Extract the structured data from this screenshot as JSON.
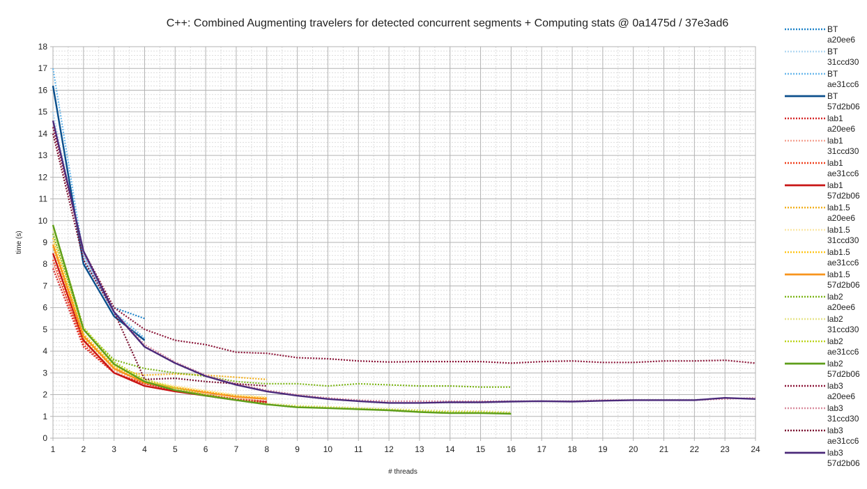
{
  "chart_data": {
    "type": "line",
    "title": "C++: Combined Augmenting travelers for detected concurrent segments + Computing stats @ 0a1475d / 37e3ad6",
    "xlabel": "# threads",
    "ylabel": "time (s)",
    "xlim": [
      1,
      24
    ],
    "ylim": [
      0,
      18
    ],
    "xticks": [
      "1",
      "2",
      "3",
      "4",
      "5",
      "6",
      "7",
      "8",
      "9",
      "10",
      "11",
      "12",
      "13",
      "14",
      "15",
      "16",
      "17",
      "18",
      "19",
      "20",
      "21",
      "22",
      "23",
      "24"
    ],
    "yticks": [
      "0",
      "1",
      "2",
      "3",
      "4",
      "5",
      "6",
      "7",
      "8",
      "9",
      "10",
      "11",
      "12",
      "13",
      "14",
      "15",
      "16",
      "17",
      "18"
    ],
    "grid": true,
    "legend_position": "right",
    "series": [
      {
        "name": "BT",
        "commit": "a20ee6",
        "color": "#1f83c9",
        "dash": "dotted",
        "x": [
          1,
          2,
          3,
          4
        ],
        "y": [
          16.2,
          8.1,
          6.0,
          5.5
        ]
      },
      {
        "name": "BT",
        "commit": "31ccd30",
        "color": "#b4d9f3",
        "dash": "dotted",
        "x": [
          1,
          2,
          3,
          4
        ],
        "y": [
          15.0,
          8.3,
          5.7,
          4.6
        ]
      },
      {
        "name": "BT",
        "commit": "ae31cc6",
        "color": "#6ab8ec",
        "dash": "dotted",
        "x": [
          1,
          2,
          3,
          4
        ],
        "y": [
          17.0,
          8.4,
          5.8,
          4.6
        ]
      },
      {
        "name": "BT",
        "commit": "57d2b06",
        "color": "#0b4f8c",
        "dash": "solid",
        "x": [
          1,
          2,
          3,
          4
        ],
        "y": [
          16.2,
          8.0,
          5.6,
          4.5
        ]
      },
      {
        "name": "lab1",
        "commit": "a20ee6",
        "color": "#d62728",
        "dash": "dotted",
        "x": [
          1,
          2,
          3,
          4,
          5,
          6,
          7,
          8
        ],
        "y": [
          7.8,
          4.2,
          3.0,
          2.5,
          2.2,
          2.0,
          1.8,
          1.7
        ]
      },
      {
        "name": "lab1",
        "commit": "31ccd30",
        "color": "#f4a292",
        "dash": "dotted",
        "x": [
          1,
          2,
          3,
          4,
          5,
          6,
          7,
          8
        ],
        "y": [
          8.0,
          4.4,
          3.1,
          2.6,
          2.3,
          2.0,
          1.8,
          1.7
        ]
      },
      {
        "name": "lab1",
        "commit": "ae31cc6",
        "color": "#ef3e1a",
        "dash": "dotted",
        "x": [
          1,
          2,
          3,
          4,
          5,
          6,
          7,
          8
        ],
        "y": [
          8.2,
          4.3,
          3.0,
          2.5,
          2.2,
          2.0,
          1.8,
          1.6
        ]
      },
      {
        "name": "lab1",
        "commit": "57d2b06",
        "color": "#c81414",
        "dash": "solid",
        "x": [
          1,
          2,
          3,
          4,
          5,
          6,
          7,
          8
        ],
        "y": [
          8.5,
          4.5,
          3.0,
          2.4,
          2.15,
          1.95,
          1.75,
          1.65
        ]
      },
      {
        "name": "lab1.5",
        "commit": "a20ee6",
        "color": "#f2b01e",
        "dash": "dotted",
        "x": [
          1,
          2,
          3,
          4,
          5,
          6,
          7,
          8
        ],
        "y": [
          8.8,
          4.6,
          3.2,
          2.9,
          2.95,
          2.9,
          2.8,
          2.7
        ]
      },
      {
        "name": "lab1.5",
        "commit": "31ccd30",
        "color": "#fbe7a6",
        "dash": "dotted",
        "x": [
          1,
          2,
          3,
          4,
          5,
          6,
          7,
          8
        ],
        "y": [
          9.0,
          4.7,
          3.3,
          2.7,
          2.4,
          2.2,
          2.0,
          1.9
        ]
      },
      {
        "name": "lab1.5",
        "commit": "ae31cc6",
        "color": "#ffc61a",
        "dash": "dotted",
        "x": [
          1,
          2,
          3,
          4,
          5,
          6,
          7,
          8
        ],
        "y": [
          9.2,
          4.8,
          3.3,
          2.6,
          2.35,
          2.15,
          1.95,
          1.85
        ]
      },
      {
        "name": "lab1.5",
        "commit": "57d2b06",
        "color": "#f7941d",
        "dash": "solid",
        "x": [
          1,
          2,
          3,
          4,
          5,
          6,
          7,
          8
        ],
        "y": [
          8.9,
          4.7,
          3.2,
          2.55,
          2.3,
          2.1,
          1.9,
          1.8
        ]
      },
      {
        "name": "lab2",
        "commit": "a20ee6",
        "color": "#7cb518",
        "dash": "dotted",
        "x": [
          1,
          2,
          3,
          4,
          5,
          6,
          7,
          8,
          9,
          10,
          11,
          12,
          13,
          14,
          15,
          16
        ],
        "y": [
          9.4,
          5.0,
          3.6,
          3.2,
          3.0,
          2.85,
          2.6,
          2.5,
          2.5,
          2.4,
          2.5,
          2.45,
          2.4,
          2.4,
          2.35,
          2.35
        ]
      },
      {
        "name": "lab2",
        "commit": "31ccd30",
        "color": "#e6e48a",
        "dash": "dotted",
        "x": [
          1,
          2,
          3,
          4,
          5,
          6,
          7,
          8,
          9,
          10,
          11,
          12,
          13,
          14,
          15,
          16
        ],
        "y": [
          9.6,
          5.0,
          3.4,
          2.7,
          2.3,
          2.0,
          1.8,
          1.6,
          1.5,
          1.45,
          1.4,
          1.35,
          1.3,
          1.25,
          1.25,
          1.2
        ]
      },
      {
        "name": "lab2",
        "commit": "ae31cc6",
        "color": "#bcd41c",
        "dash": "dotted",
        "x": [
          1,
          2,
          3,
          4,
          5,
          6,
          7,
          8,
          9,
          10,
          11,
          12,
          13,
          14,
          15,
          16
        ],
        "y": [
          9.8,
          5.1,
          3.5,
          2.7,
          2.3,
          2.0,
          1.75,
          1.55,
          1.45,
          1.4,
          1.35,
          1.3,
          1.25,
          1.2,
          1.2,
          1.15
        ]
      },
      {
        "name": "lab2",
        "commit": "57d2b06",
        "color": "#5e9e1a",
        "dash": "solid",
        "x": [
          1,
          2,
          3,
          4,
          5,
          6,
          7,
          8,
          9,
          10,
          11,
          12,
          13,
          14,
          15,
          16
        ],
        "y": [
          9.8,
          5.0,
          3.4,
          2.6,
          2.2,
          1.95,
          1.75,
          1.55,
          1.42,
          1.38,
          1.33,
          1.28,
          1.2,
          1.15,
          1.15,
          1.12
        ]
      },
      {
        "name": "lab3",
        "commit": "a20ee6",
        "color": "#8b1538",
        "dash": "dotted",
        "x": [
          1,
          2,
          3,
          4,
          5,
          6,
          7,
          8,
          9,
          10,
          11,
          12,
          13,
          14,
          15,
          16,
          17,
          18,
          19,
          20,
          21,
          22,
          23,
          24
        ],
        "y": [
          14.3,
          8.6,
          6.0,
          5.0,
          4.5,
          4.3,
          3.95,
          3.9,
          3.7,
          3.65,
          3.55,
          3.5,
          3.52,
          3.52,
          3.52,
          3.45,
          3.52,
          3.55,
          3.48,
          3.48,
          3.55,
          3.55,
          3.58,
          3.45
        ]
      },
      {
        "name": "lab3",
        "commit": "31ccd30",
        "color": "#d98c9e",
        "dash": "dotted",
        "x": [
          1,
          2,
          3,
          4,
          5,
          6,
          7,
          8,
          9,
          10,
          11,
          12,
          13,
          14,
          15,
          16,
          17,
          18,
          19,
          20,
          21,
          22,
          23,
          24
        ],
        "y": [
          14.6,
          8.5,
          5.8,
          4.3,
          3.5,
          2.9,
          2.5,
          2.2,
          2.0,
          1.85,
          1.75,
          1.7,
          1.7,
          1.7,
          1.7,
          1.7,
          1.7,
          1.7,
          1.75,
          1.75,
          1.75,
          1.75,
          1.8,
          1.85
        ]
      },
      {
        "name": "lab3",
        "commit": "ae31cc6",
        "color": "#7a1030",
        "dash": "dotted",
        "x": [
          1,
          2,
          3,
          4,
          5,
          6,
          7,
          8
        ],
        "y": [
          14.0,
          8.2,
          5.8,
          2.7,
          2.75,
          2.6,
          2.5,
          2.4
        ]
      },
      {
        "name": "lab3",
        "commit": "57d2b06",
        "color": "#4b2a7a",
        "dash": "solid",
        "x": [
          1,
          2,
          3,
          4,
          5,
          6,
          7,
          8,
          9,
          10,
          11,
          12,
          13,
          14,
          15,
          16,
          17,
          18,
          19,
          20,
          21,
          22,
          23,
          24
        ],
        "y": [
          14.6,
          8.6,
          5.8,
          4.2,
          3.45,
          2.85,
          2.45,
          2.15,
          1.95,
          1.8,
          1.7,
          1.62,
          1.62,
          1.65,
          1.65,
          1.68,
          1.7,
          1.68,
          1.72,
          1.75,
          1.75,
          1.75,
          1.85,
          1.8
        ]
      }
    ]
  }
}
